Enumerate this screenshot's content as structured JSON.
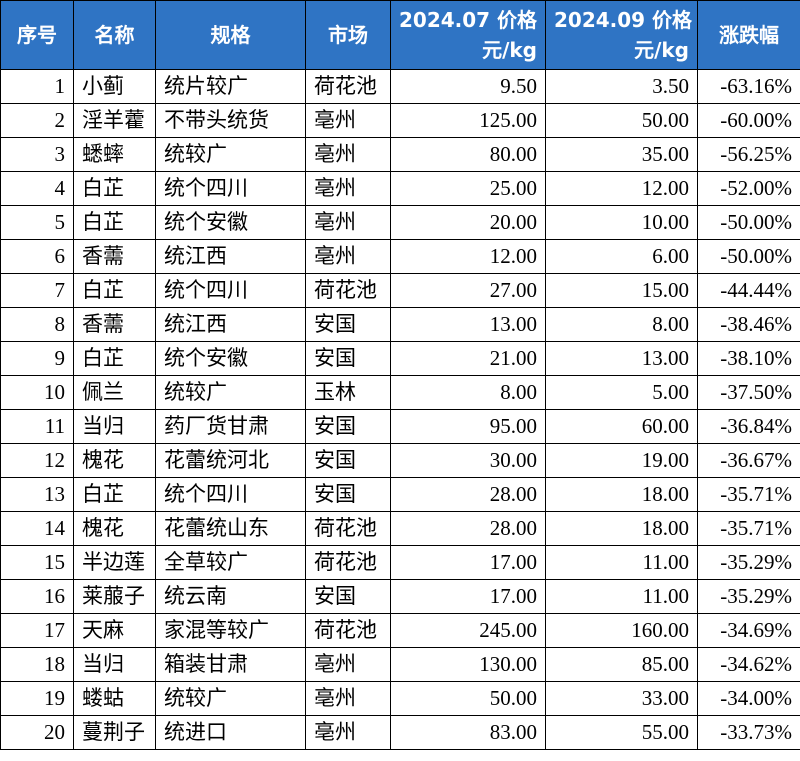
{
  "table": {
    "header": [
      [
        "序号"
      ],
      [
        "名称"
      ],
      [
        "规格"
      ],
      [
        "市场"
      ],
      [
        "2024.07 价格",
        "元/kg"
      ],
      [
        "2024.09 价格",
        "元/kg"
      ],
      [
        "涨跌幅"
      ]
    ],
    "rows": [
      [
        "1",
        "小蓟",
        "统片较广",
        "荷花池",
        "9.50",
        "3.50",
        "-63.16%"
      ],
      [
        "2",
        "淫羊藿",
        "不带头统货",
        "亳州",
        "125.00",
        "50.00",
        "-60.00%"
      ],
      [
        "3",
        "蟋蟀",
        "统较广",
        "亳州",
        "80.00",
        "35.00",
        "-56.25%"
      ],
      [
        "4",
        "白芷",
        "统个四川",
        "亳州",
        "25.00",
        "12.00",
        "-52.00%"
      ],
      [
        "5",
        "白芷",
        "统个安徽",
        "亳州",
        "20.00",
        "10.00",
        "-50.00%"
      ],
      [
        "6",
        "香薷",
        "统江西",
        "亳州",
        "12.00",
        "6.00",
        "-50.00%"
      ],
      [
        "7",
        "白芷",
        "统个四川",
        "荷花池",
        "27.00",
        "15.00",
        "-44.44%"
      ],
      [
        "8",
        "香薷",
        "统江西",
        "安国",
        "13.00",
        "8.00",
        "-38.46%"
      ],
      [
        "9",
        "白芷",
        "统个安徽",
        "安国",
        "21.00",
        "13.00",
        "-38.10%"
      ],
      [
        "10",
        "佩兰",
        "统较广",
        "玉林",
        "8.00",
        "5.00",
        "-37.50%"
      ],
      [
        "11",
        "当归",
        "药厂货甘肃",
        "安国",
        "95.00",
        "60.00",
        "-36.84%"
      ],
      [
        "12",
        "槐花",
        "花蕾统河北",
        "安国",
        "30.00",
        "19.00",
        "-36.67%"
      ],
      [
        "13",
        "白芷",
        "统个四川",
        "安国",
        "28.00",
        "18.00",
        "-35.71%"
      ],
      [
        "14",
        "槐花",
        "花蕾统山东",
        "荷花池",
        "28.00",
        "18.00",
        "-35.71%"
      ],
      [
        "15",
        "半边莲",
        "全草较广",
        "荷花池",
        "17.00",
        "11.00",
        "-35.29%"
      ],
      [
        "16",
        "莱菔子",
        "统云南",
        "安国",
        "17.00",
        "11.00",
        "-35.29%"
      ],
      [
        "17",
        "天麻",
        "家混等较广",
        "荷花池",
        "245.00",
        "160.00",
        "-34.69%"
      ],
      [
        "18",
        "当归",
        "箱装甘肃",
        "亳州",
        "130.00",
        "85.00",
        "-34.62%"
      ],
      [
        "19",
        "蝼蛄",
        "统较广",
        "亳州",
        "50.00",
        "33.00",
        "-34.00%"
      ],
      [
        "20",
        "蔓荆子",
        "统进口",
        "亳州",
        "83.00",
        "55.00",
        "-33.73%"
      ]
    ]
  }
}
